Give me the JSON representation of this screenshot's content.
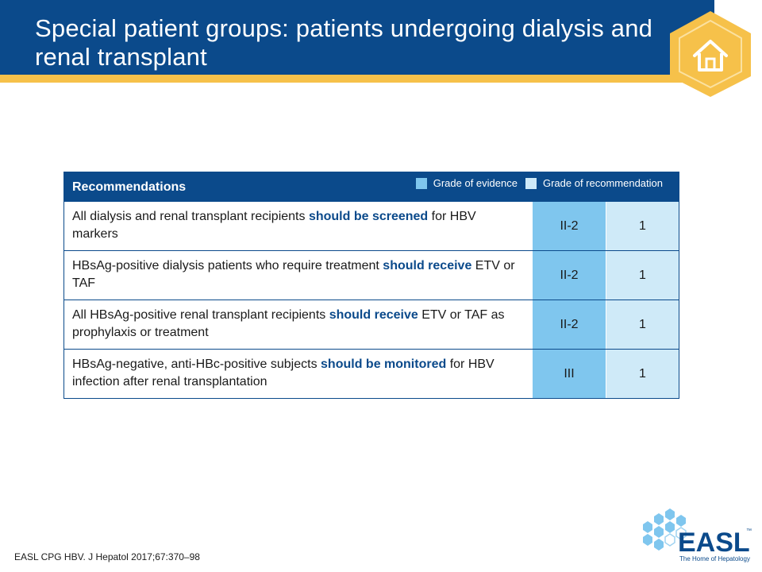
{
  "header": {
    "title": "Special patient groups: patients undergoing dialysis and renal transplant"
  },
  "table": {
    "heading": "Recommendations",
    "legend": {
      "evidence_label": "Grade of evidence",
      "recommendation_label": "Grade of recommendation"
    },
    "rows": [
      {
        "pre": "All dialysis and renal transplant recipients ",
        "highlight": "should be screened",
        "post": " for HBV markers",
        "evidence": "II-2",
        "recommendation": "1"
      },
      {
        "pre": "HBsAg-positive dialysis patients who require treatment ",
        "highlight": "should receive",
        "post": " ETV or TAF",
        "evidence": "II-2",
        "recommendation": "1"
      },
      {
        "pre": "All HBsAg-positive renal transplant recipients ",
        "highlight": "should receive",
        "post": " ETV or TAF as prophylaxis or treatment",
        "evidence": "II-2",
        "recommendation": "1"
      },
      {
        "pre": "HBsAg-negative, anti-HBc-positive subjects ",
        "highlight": "should be monitored",
        "post": " for HBV infection after renal transplantation",
        "evidence": "III",
        "recommendation": "1"
      }
    ]
  },
  "footer": {
    "citation": "EASL CPG HBV. J Hepatol 2017;67:370–98",
    "logo_text": "EASL",
    "logo_tagline": "The Home of Hepatology",
    "logo_tm": "™"
  },
  "colors": {
    "brand_blue": "#0b4a8b",
    "accent_yellow": "#f6c14a",
    "evidence_fill": "#7fc6ee",
    "recommendation_fill": "#cfeaf8"
  },
  "icons": {
    "home": "home-icon",
    "logo": "easl-logo"
  }
}
